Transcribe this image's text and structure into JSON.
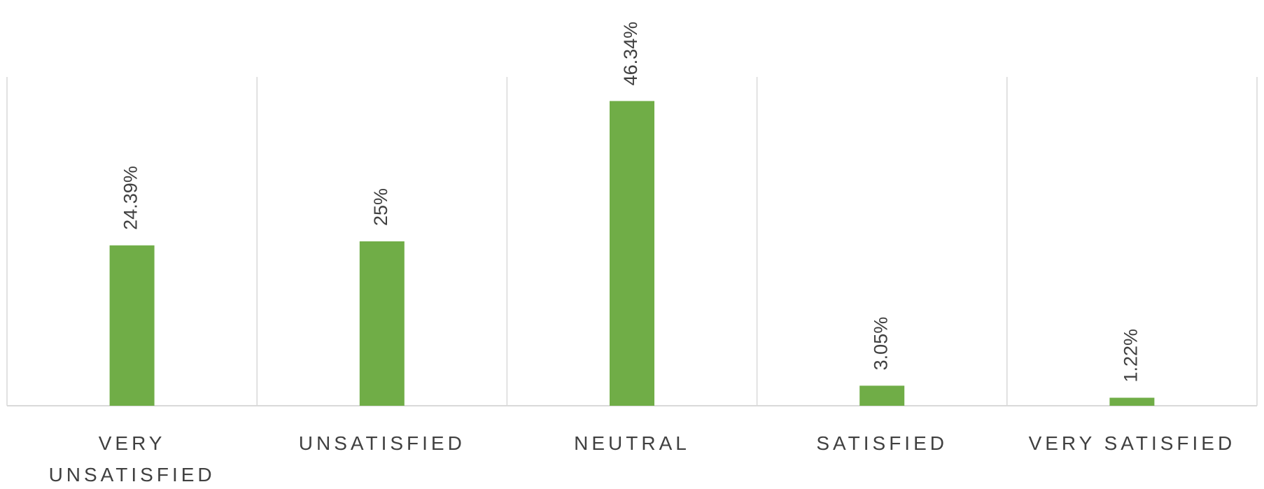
{
  "chart_data": {
    "type": "bar",
    "categories": [
      [
        "VERY",
        "UNSATISFIED"
      ],
      [
        "UNSATISFIED"
      ],
      [
        "NEUTRAL"
      ],
      [
        "SATISFIED"
      ],
      [
        "VERY SATISFIED"
      ]
    ],
    "values": [
      24.39,
      25,
      46.34,
      3.05,
      1.22
    ],
    "data_labels": [
      "24.39%",
      "25%",
      "46.34%",
      "3.05%",
      "1.22%"
    ],
    "title": "",
    "xlabel": "",
    "ylabel": "",
    "ylim": [
      0,
      50
    ],
    "grid": "vertical category separators",
    "legend": "none",
    "bar_color": "#70ad47",
    "gridline_color": "#d9d9d9",
    "text_color": "#404040"
  }
}
